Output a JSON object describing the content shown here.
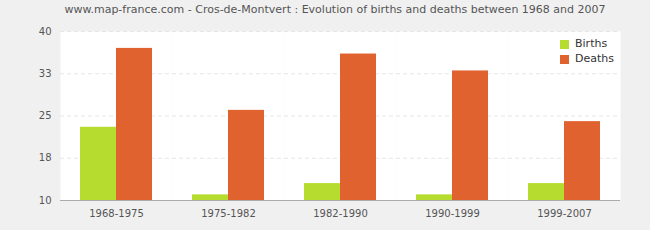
{
  "chart_data": {
    "type": "bar",
    "title": "www.map-france.com - Cros-de-Montvert : Evolution of births and deaths between 1968 and 2007",
    "categories": [
      "1968-1975",
      "1975-1982",
      "1982-1990",
      "1990-1999",
      "1999-2007"
    ],
    "series": [
      {
        "name": "Births",
        "color": "#b5dc2e",
        "values": [
          23,
          11,
          13,
          11,
          13
        ]
      },
      {
        "name": "Deaths",
        "color": "#e0622f",
        "values": [
          37,
          26,
          36,
          33,
          24
        ]
      }
    ],
    "ylim": [
      10,
      40
    ],
    "yticks": [
      10,
      {
        "value": 17.5,
        "label": "18"
      },
      25,
      {
        "value": 32.5,
        "label": "33"
      },
      40
    ],
    "grid": true,
    "legend": "top-right"
  }
}
